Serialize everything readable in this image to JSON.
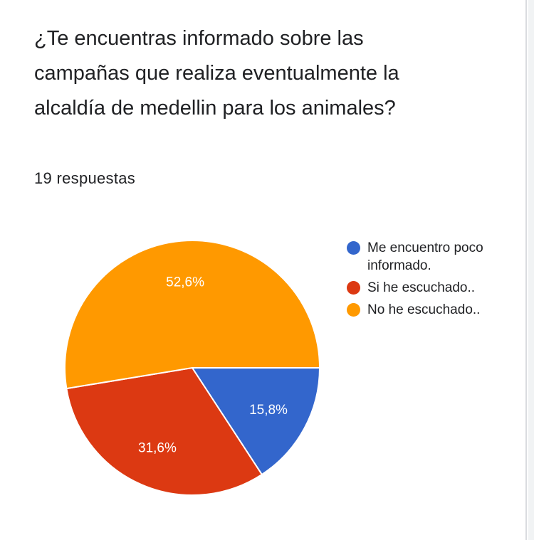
{
  "question": {
    "title": "¿Te encuentras informado sobre las campañas que realiza eventualmente la alcaldía de medellin para los animales?",
    "responses": "19 respuestas"
  },
  "colors": {
    "blue": "#3366cc",
    "red": "#dc3912",
    "orange": "#ff9900"
  },
  "chart_data": {
    "type": "pie",
    "title": "",
    "categories": [
      "Me encuentro poco informado.",
      "Si he escuchado..",
      "No he escuchado.."
    ],
    "values": [
      15.8,
      31.6,
      52.6
    ],
    "labels": [
      "15,8%",
      "31,6%",
      "52,6%"
    ],
    "colors": [
      "#3366cc",
      "#dc3912",
      "#ff9900"
    ],
    "legend_position": "right"
  }
}
